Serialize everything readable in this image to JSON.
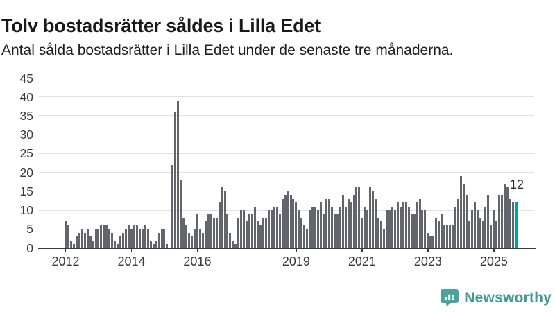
{
  "chart_data": {
    "type": "bar",
    "title": "Tolv bostadsrätter såldes i Lilla Edet",
    "subtitle": "Antal sålda bostadsrätter i Lilla Edet under de senaste tre månaderna.",
    "ylim": [
      0,
      45
    ],
    "yticks": [
      "0",
      "5",
      "10",
      "15",
      "20",
      "25",
      "30",
      "35",
      "40",
      "45"
    ],
    "grid": true,
    "x_unit": "month",
    "x_tick_labels": [
      "2012",
      "2014",
      "2016",
      "2019",
      "2021",
      "2023",
      "2025"
    ],
    "x_tick_month_index": [
      0,
      24,
      48,
      84,
      108,
      132,
      156
    ],
    "values": [
      7,
      6,
      2,
      1,
      3,
      4,
      5,
      4,
      5,
      3,
      2,
      5,
      5,
      6,
      6,
      6,
      5,
      4,
      2,
      1,
      3,
      4,
      5,
      6,
      5,
      6,
      6,
      5,
      5,
      6,
      5,
      2,
      1,
      2,
      4,
      5,
      5,
      1,
      0,
      22,
      36,
      39,
      18,
      8,
      6,
      4,
      3,
      5,
      9,
      5,
      4,
      7,
      9,
      9,
      8,
      8,
      12,
      16,
      15,
      9,
      4,
      2,
      1,
      8,
      10,
      10,
      7,
      9,
      9,
      11,
      7,
      6,
      8,
      8,
      10,
      10,
      11,
      11,
      9,
      13,
      14,
      15,
      14,
      13,
      12,
      10,
      8,
      6,
      5,
      10,
      11,
      11,
      10,
      12,
      9,
      13,
      13,
      11,
      9,
      9,
      11,
      14,
      11,
      13,
      12,
      14,
      16,
      16,
      8,
      11,
      10,
      16,
      15,
      13,
      8,
      7,
      5,
      10,
      10,
      11,
      10,
      12,
      11,
      12,
      12,
      11,
      9,
      9,
      12,
      13,
      10,
      10,
      4,
      3,
      3,
      8,
      7,
      9,
      6,
      6,
      6,
      6,
      11,
      13,
      19,
      17,
      14,
      7,
      10,
      12,
      10,
      8,
      7,
      11,
      14,
      6,
      10,
      7,
      14,
      14,
      17,
      16,
      13,
      12,
      12
    ],
    "highlight": {
      "index": 164,
      "value": 12,
      "label": "12"
    },
    "colors": {
      "bar": "#64646c",
      "highlight": "#109c96",
      "grid": "#e2e2e2",
      "axis": "#3a3a3a",
      "text": "#3a3a3a",
      "title": "#191919"
    },
    "legend": null
  },
  "footer": {
    "brand": "Newsworthy",
    "brand_color": "#3f9a96"
  }
}
